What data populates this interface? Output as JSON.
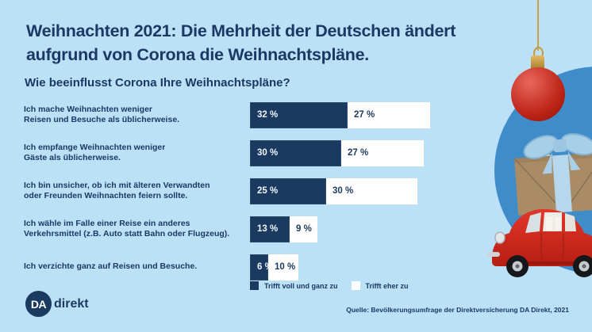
{
  "page": {
    "background_color": "#BCE0F6",
    "navy": "#1B3A5F",
    "circle_blue": "#3F8CCB"
  },
  "header": {
    "title": "Weihnachten 2021: Die Mehrheit der Deutschen ändert\naufgrund von Corona die Weihnachtspläne.",
    "question": "Wie beeinflusst Corona Ihre Weihnachtspläne?"
  },
  "chart_data": {
    "type": "bar",
    "orientation": "horizontal",
    "stacked": true,
    "unit": "%",
    "value_suffix": " %",
    "xlim": [
      0,
      62
    ],
    "legend_position": "bottom",
    "categories": [
      "Ich mache Weihnachten weniger\nReisen und Besuche als üblicherweise.",
      "Ich empfange Weihnachten weniger\nGäste als üblicherweise.",
      "Ich bin unsicher, ob ich mit älteren Verwandten\noder Freunden Weihnachten feiern sollte.",
      "Ich wähle im Falle einer Reise ein anderes\nVerkehrsmittel (z.B. Auto statt Bahn oder Flugzeug).",
      "Ich verzichte ganz auf Reisen und Besuche."
    ],
    "series": [
      {
        "name": "Trifft voll und ganz zu",
        "color": "#1B3A5F",
        "text_color": "#FFFFFF",
        "values": [
          32,
          30,
          25,
          13,
          6
        ]
      },
      {
        "name": "Trifft eher zu",
        "color": "#FFFFFF",
        "text_color": "#1B3A5F",
        "values": [
          27,
          27,
          30,
          9,
          10
        ]
      }
    ]
  },
  "footer": {
    "source": "Quelle: Bevölkerungsumfrage der Direktversicherung DA Direkt, 2021",
    "logo_circle_text": "DA",
    "logo_wordmark": "direkt"
  },
  "decoration": {
    "items": [
      "gold-string",
      "christmas-ball-ornament",
      "blue-circle",
      "gift-box-with-ribbon",
      "red-beetle-car"
    ]
  }
}
